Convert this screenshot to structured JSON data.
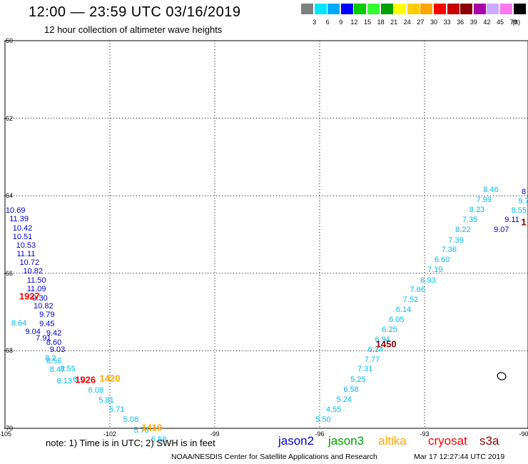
{
  "title": "12:00 — 23:59 UTC 03/16/2019",
  "subtitle": "12 hour collection of altimeter wave heights",
  "legend": {
    "colors": [
      "#808080",
      "#00e5ff",
      "#00aaff",
      "#0000ff",
      "#00cc00",
      "#33ff33",
      "#00a000",
      "#ffff00",
      "#ffcc00",
      "#ffa500",
      "#ff0000",
      "#c80000",
      "#8b0000",
      "#aa00aa",
      "#ccaaff",
      "#ff77ee",
      "#000000"
    ],
    "labels": [
      "3",
      "6",
      "9",
      "12",
      "15",
      "18",
      "21",
      "24",
      "27",
      "30",
      "33",
      "36",
      "39",
      "42",
      "45",
      "70"
    ],
    "unit": "(ft)"
  },
  "axes": {
    "lat_labels": [
      "-60",
      "-62",
      "-64",
      "-66",
      "-68",
      "-70"
    ],
    "lon_labels": [
      "-105",
      "-102",
      "-99",
      "-96",
      "-93",
      "-90"
    ]
  },
  "passes": [
    {
      "time": "1927",
      "color": "#ff0000",
      "lon": -104.3,
      "lat": -66.6
    },
    {
      "time": "1926",
      "color": "#ff0000",
      "lon": -102.7,
      "lat": -68.75
    },
    {
      "time": "1420",
      "color": "#ffa500",
      "lon": -102.0,
      "lat": -68.72
    },
    {
      "time": "1419",
      "color": "#ffa500",
      "lon": -100.8,
      "lat": -69.98
    },
    {
      "time": "1450",
      "color": "#8b0000",
      "lon": -94.1,
      "lat": -67.82
    },
    {
      "time": "1",
      "color": "#8b0000",
      "lon": -89.9,
      "lat": -64.68
    }
  ],
  "track_west_blue": [
    {
      "v": "10.69",
      "lon": -104.7,
      "lat": -64.38
    },
    {
      "v": "11.39",
      "lon": -104.6,
      "lat": -64.61
    },
    {
      "v": "10.42",
      "lon": -104.5,
      "lat": -64.84
    },
    {
      "v": "10.51",
      "lon": -104.5,
      "lat": -65.06
    },
    {
      "v": "10.53",
      "lon": -104.4,
      "lat": -65.28
    },
    {
      "v": "11.11",
      "lon": -104.4,
      "lat": -65.51
    },
    {
      "v": "10.72",
      "lon": -104.3,
      "lat": -65.73
    },
    {
      "v": "10.82",
      "lon": -104.2,
      "lat": -65.95
    },
    {
      "v": "11.50",
      "lon": -104.1,
      "lat": -66.18
    },
    {
      "v": "11.09",
      "lon": -104.1,
      "lat": -66.41
    },
    {
      "v": "9.30",
      "lon": -104.0,
      "lat": -66.64
    },
    {
      "v": "10.82",
      "lon": -103.9,
      "lat": -66.86
    },
    {
      "v": "9.79",
      "lon": -103.8,
      "lat": -67.08
    },
    {
      "v": "9.45",
      "lon": -103.8,
      "lat": -67.31
    },
    {
      "v": "9.42",
      "lon": -103.6,
      "lat": -67.55
    },
    {
      "v": "9.04",
      "lon": -104.2,
      "lat": -67.52
    },
    {
      "v": "7.91",
      "lon": -103.9,
      "lat": -67.68
    },
    {
      "v": "8.60",
      "lon": -103.6,
      "lat": -67.79
    },
    {
      "v": "9.03",
      "lon": -103.5,
      "lat": -67.98
    }
  ],
  "track_west_cyan": [
    {
      "v": "8.64",
      "lon": -104.6,
      "lat": -67.3
    },
    {
      "v": "8.2",
      "lon": -103.7,
      "lat": -68.2
    },
    {
      "v": "8.56",
      "lon": -103.6,
      "lat": -68.26
    },
    {
      "v": "8.47",
      "lon": -103.5,
      "lat": -68.49
    },
    {
      "v": "8.55",
      "lon": -103.2,
      "lat": -68.47
    },
    {
      "v": "8.13",
      "lon": -103.3,
      "lat": -68.79
    },
    {
      "v": "6.1",
      "lon": -102.9,
      "lat": -68.75
    },
    {
      "v": "6.08",
      "lon": -102.4,
      "lat": -69.02
    },
    {
      "v": "5.81",
      "lon": -102.1,
      "lat": -69.28
    },
    {
      "v": "5.71",
      "lon": -101.8,
      "lat": -69.53
    },
    {
      "v": "5.08",
      "lon": -101.4,
      "lat": -69.78
    },
    {
      "v": "5.75",
      "lon": -101.1,
      "lat": -70.05
    },
    {
      "v": "5.58",
      "lon": -100.6,
      "lat": -70.3
    }
  ],
  "track_east_cyan": [
    {
      "v": "5.50",
      "lon": -95.9,
      "lat": -69.78
    },
    {
      "v": "4.55",
      "lon": -95.6,
      "lat": -69.53
    },
    {
      "v": "5.24",
      "lon": -95.3,
      "lat": -69.27
    },
    {
      "v": "6.58",
      "lon": -95.1,
      "lat": -69.01
    },
    {
      "v": "5.25",
      "lon": -94.9,
      "lat": -68.74
    },
    {
      "v": "7.31",
      "lon": -94.7,
      "lat": -68.48
    },
    {
      "v": "7.77",
      "lon": -94.5,
      "lat": -68.23
    },
    {
      "v": "6.34",
      "lon": -94.4,
      "lat": -67.97
    },
    {
      "v": "6.94",
      "lon": -94.2,
      "lat": -67.72
    },
    {
      "v": "6.25",
      "lon": -94.0,
      "lat": -67.45
    },
    {
      "v": "6.05",
      "lon": -93.8,
      "lat": -67.2
    },
    {
      "v": "6.14",
      "lon": -93.6,
      "lat": -66.95
    },
    {
      "v": "7.52",
      "lon": -93.4,
      "lat": -66.69
    },
    {
      "v": "7.66",
      "lon": -93.2,
      "lat": -66.43
    },
    {
      "v": "6.93",
      "lon": -92.9,
      "lat": -66.18
    },
    {
      "v": "7.19",
      "lon": -92.7,
      "lat": -65.91
    },
    {
      "v": "6.60",
      "lon": -92.5,
      "lat": -65.66
    },
    {
      "v": "7.36",
      "lon": -92.3,
      "lat": -65.4
    },
    {
      "v": "7.39",
      "lon": -92.1,
      "lat": -65.15
    },
    {
      "v": "8.22",
      "lon": -91.9,
      "lat": -64.88
    },
    {
      "v": "7.35",
      "lon": -91.7,
      "lat": -64.62
    },
    {
      "v": "8.23",
      "lon": -91.5,
      "lat": -64.36
    },
    {
      "v": "7.99",
      "lon": -91.3,
      "lat": -64.11
    },
    {
      "v": "8.46",
      "lon": -91.1,
      "lat": -63.84
    },
    {
      "v": "8.55",
      "lon": -90.3,
      "lat": -64.38
    },
    {
      "v": "9.7",
      "lon": -90.0,
      "lat": -64.15
    }
  ],
  "track_east_blue": [
    {
      "v": "9.07",
      "lon": -90.8,
      "lat": -64.88
    },
    {
      "v": "9.11",
      "lon": -90.5,
      "lat": -64.63
    },
    {
      "v": "8",
      "lon": -89.9,
      "lat": -63.9
    }
  ],
  "note": "note:  1) Time is in UTC;  2) SWH is in feet",
  "satellites": [
    {
      "name": "jason2",
      "color": "#0000dd"
    },
    {
      "name": "jason3",
      "color": "#00a000"
    },
    {
      "name": "altika",
      "color": "#ffa500"
    },
    {
      "name": "cryosat",
      "color": "#ff0000"
    },
    {
      "name": "s3a",
      "color": "#8b0000"
    }
  ],
  "footer": "NOAA/NESDIS Center for Satellite Applications and Research",
  "timestamp": "Mar 17 12:27:44 UTC 2019"
}
